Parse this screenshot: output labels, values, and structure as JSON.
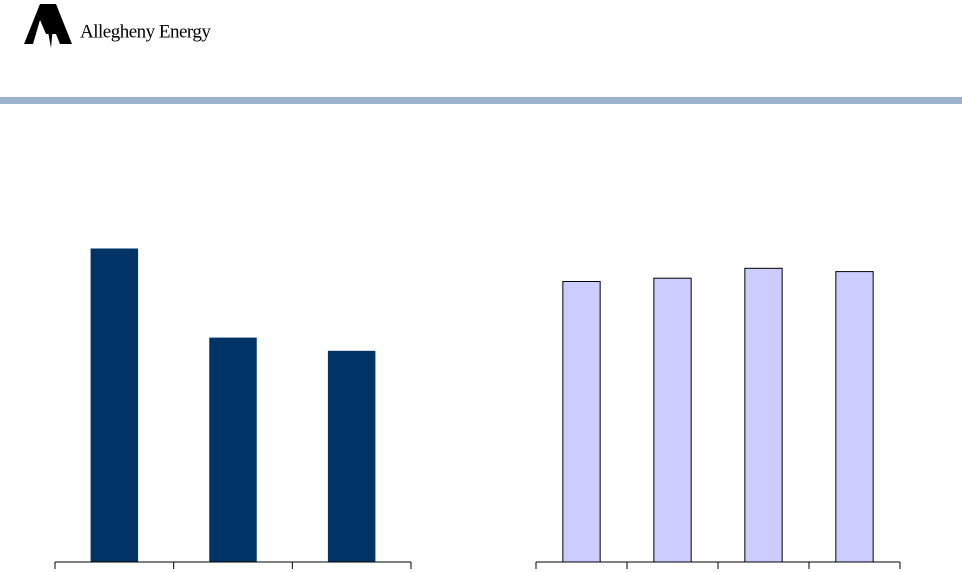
{
  "header": {
    "logo_text": "Allegheny Energy"
  },
  "chart_data": [
    {
      "type": "bar",
      "categories": [
        null,
        null,
        null
      ],
      "values": [
        95,
        68,
        64
      ],
      "color": "#003366",
      "ylim": [
        0,
        100
      ]
    },
    {
      "type": "bar",
      "categories": [
        null,
        null,
        null,
        null
      ],
      "values": [
        85,
        86,
        89,
        88
      ],
      "color": "#ccccff",
      "ylim": [
        0,
        100
      ]
    }
  ]
}
